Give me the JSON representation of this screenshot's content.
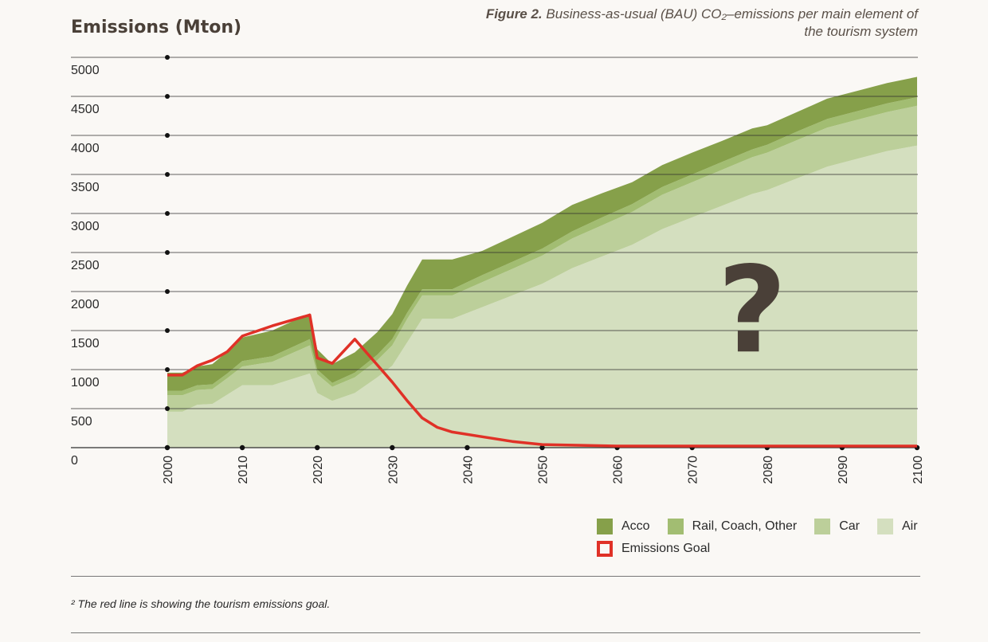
{
  "header": {
    "y_title": "Emissions (Mton)",
    "caption_bold": "Figure 2.",
    "caption_rest": " Business-as-usual (BAU) CO₂–emissions per main element of the tourism system"
  },
  "legend": {
    "acco": "Acco",
    "rail": "Rail, Coach, Other",
    "car": "Car",
    "air": "Air",
    "goal": "Emissions Goal"
  },
  "footnote": "² The red line is showing the tourism emissions goal.",
  "chart_data": {
    "type": "area",
    "stacked": true,
    "ylabel": "Emissions (Mton)",
    "ylim": [
      0,
      5000
    ],
    "yticks": [
      0,
      500,
      1000,
      1500,
      2000,
      2500,
      3000,
      3500,
      4000,
      4500,
      5000
    ],
    "xlim": [
      2000,
      2100
    ],
    "xticks": [
      2000,
      2010,
      2020,
      2030,
      2040,
      2050,
      2060,
      2070,
      2080,
      2090,
      2100
    ],
    "grid": true,
    "legend_position": "bottom-right",
    "annotation": "?",
    "colors": {
      "Acco": "#86a04a",
      "Rail, Coach, Other": "#a2bd72",
      "Car": "#bccf9a",
      "Air": "#d4dfbf",
      "Emissions Goal": "#e03127"
    },
    "x": [
      2000,
      2002,
      2004,
      2006,
      2008,
      2010,
      2014,
      2019,
      2020,
      2022,
      2025,
      2028,
      2030,
      2032,
      2034,
      2038,
      2042,
      2046,
      2050,
      2054,
      2058,
      2062,
      2066,
      2070,
      2074,
      2078,
      2080,
      2084,
      2088,
      2092,
      2096,
      2100
    ],
    "series": [
      {
        "name": "Air",
        "values": [
          460,
          460,
          550,
          560,
          680,
          800,
          800,
          950,
          700,
          600,
          700,
          900,
          1050,
          1350,
          1650,
          1650,
          1800,
          1950,
          2100,
          2300,
          2450,
          2600,
          2800,
          2950,
          3100,
          3250,
          3300,
          3450,
          3600,
          3700,
          3800,
          3870
        ]
      },
      {
        "name": "Car",
        "values": [
          210,
          210,
          190,
          190,
          210,
          240,
          300,
          360,
          240,
          180,
          200,
          220,
          260,
          300,
          300,
          300,
          320,
          340,
          360,
          380,
          400,
          420,
          440,
          450,
          460,
          470,
          480,
          490,
          500,
          500,
          500,
          510
        ]
      },
      {
        "name": "Rail, Coach, Other",
        "values": [
          60,
          60,
          60,
          60,
          60,
          70,
          70,
          80,
          60,
          50,
          60,
          70,
          80,
          80,
          80,
          80,
          90,
          90,
          90,
          90,
          100,
          100,
          100,
          100,
          100,
          100,
          100,
          110,
          110,
          110,
          110,
          110
        ]
      },
      {
        "name": "Acco",
        "values": [
          230,
          230,
          240,
          260,
          280,
          300,
          330,
          330,
          260,
          240,
          260,
          290,
          320,
          350,
          380,
          380,
          310,
          320,
          330,
          340,
          310,
          280,
          280,
          280,
          270,
          270,
          250,
          250,
          260,
          260,
          260,
          260
        ]
      },
      {
        "name": "Emissions Goal",
        "kind": "line",
        "x": [
          2000,
          2002,
          2004,
          2006,
          2008,
          2010,
          2014,
          2019,
          2020,
          2022,
          2025,
          2028,
          2030,
          2032,
          2034,
          2036,
          2038,
          2042,
          2046,
          2050,
          2060,
          2070,
          2080,
          2090,
          2100
        ],
        "values": [
          930,
          930,
          1050,
          1120,
          1230,
          1430,
          1560,
          1700,
          1150,
          1080,
          1390,
          1060,
          840,
          600,
          380,
          260,
          200,
          140,
          80,
          40,
          20,
          20,
          20,
          20,
          20
        ]
      }
    ],
    "question_mark_at": [
      2078,
      2150
    ]
  }
}
